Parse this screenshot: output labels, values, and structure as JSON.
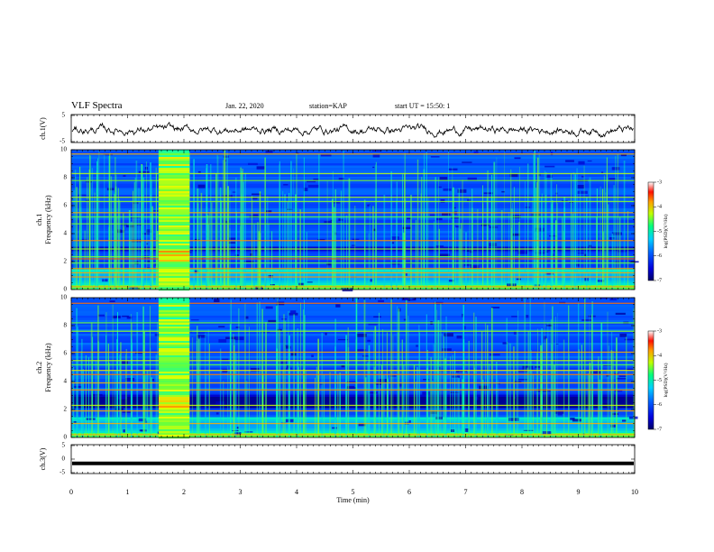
{
  "header": {
    "title": "VLF Spectra",
    "date": "Jan. 22, 2020",
    "station": "station=KAP",
    "start": "start UT = 15:50: 1"
  },
  "chart_data": [
    {
      "type": "line",
      "panel": "ch1-waveform",
      "ylabel": "ch.1(V)",
      "ylim": [
        -5,
        5
      ],
      "yticks": [
        "5",
        "-5"
      ],
      "xlim": [
        0,
        10
      ],
      "note_values": "noisy waveform fluctuating roughly between -3 and 2 V"
    },
    {
      "type": "heatmap",
      "panel": "ch1-spectrogram",
      "ylabel": "ch.1 Frequency (kHz)",
      "ylim": [
        0,
        10
      ],
      "yticks": [
        "0",
        "2",
        "4",
        "6",
        "8",
        "10"
      ],
      "xlim": [
        0,
        10
      ],
      "colorbar": {
        "label": "log(PSD)(V²/Hz)",
        "ticks": [
          "-3",
          "-4",
          "-5",
          "-6",
          "-7"
        ],
        "range": [
          -7,
          -3
        ]
      },
      "burst": {
        "t_start": 1.55,
        "t_end": 2.1
      },
      "bands_khz": [
        0.2,
        0.9,
        1.2,
        1.5,
        1.9,
        2.2,
        2.35,
        2.9,
        3.5,
        4.7,
        5.2,
        5.5,
        6.3,
        6.6,
        7.8,
        8.3,
        9.7
      ]
    },
    {
      "type": "heatmap",
      "panel": "ch2-spectrogram",
      "ylabel": "ch.2 Frequency (kHz)",
      "ylim": [
        0,
        10
      ],
      "yticks": [
        "0",
        "2",
        "4",
        "6",
        "8",
        "10"
      ],
      "xlim": [
        0,
        10
      ],
      "colorbar": {
        "label": "log(PSD)(V²/Hz)",
        "ticks": [
          "-3",
          "-4",
          "-5",
          "-6",
          "-7"
        ],
        "range": [
          -7,
          -3
        ]
      },
      "burst": {
        "t_start": 1.55,
        "t_end": 2.1
      },
      "bands_khz": [
        0.2,
        1.0,
        1.9,
        2.3,
        3.4,
        3.9,
        4.5,
        4.8,
        5.2,
        5.5,
        6.1,
        7.6,
        8.2,
        9.6
      ]
    },
    {
      "type": "line",
      "panel": "ch3-waveform",
      "ylabel": "ch.3(V)",
      "ylim": [
        -5,
        5
      ],
      "yticks": [
        "5",
        "0",
        "-5"
      ],
      "xlim": [
        0,
        10
      ],
      "value_v": -1.5
    }
  ],
  "xaxis": {
    "label": "Time (min)",
    "ticks": [
      "0",
      "1",
      "2",
      "3",
      "4",
      "5",
      "6",
      "7",
      "8",
      "9",
      "10"
    ]
  },
  "colors": {
    "axis": "#000000",
    "background_quiet": "#05107a",
    "colormap": [
      "#000066",
      "#0000cc",
      "#0040ff",
      "#00a0ff",
      "#00ffc0",
      "#60ff40",
      "#e0ff00",
      "#ffa000",
      "#ff2000",
      "#ffffff"
    ]
  }
}
